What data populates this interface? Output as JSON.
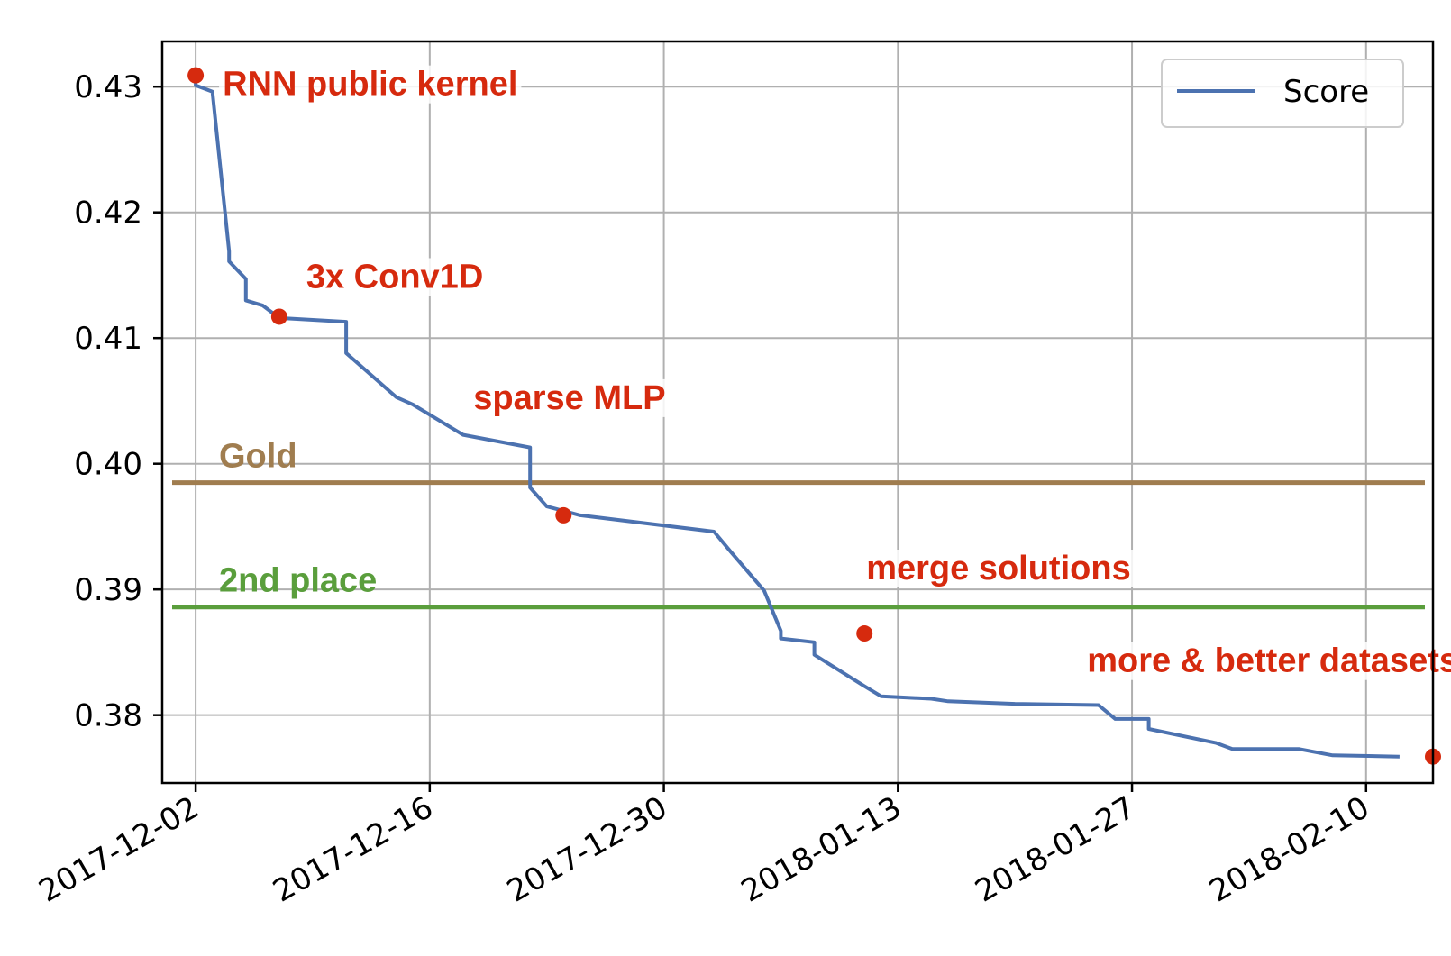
{
  "chart_data": {
    "type": "line",
    "x_type": "date",
    "xlim": [
      "2017-11-30",
      "2018-02-14"
    ],
    "ylim": [
      0.3746,
      0.4336
    ],
    "grid": true,
    "legend_position": "top-right",
    "x_ticks": [
      "2017-12-02",
      "2017-12-16",
      "2017-12-30",
      "2018-01-13",
      "2018-01-27",
      "2018-02-10"
    ],
    "y_ticks": [
      0.38,
      0.39,
      0.4,
      0.41,
      0.42,
      0.43
    ],
    "y_tick_labels": [
      "0.38",
      "0.39",
      "0.40",
      "0.41",
      "0.42",
      "0.43"
    ],
    "series": [
      {
        "name": "Score",
        "color": "#4c72b0",
        "points": [
          [
            "2017-12-02",
            0.4308
          ],
          [
            "2017-12-02",
            0.4301
          ],
          [
            "2017-12-03",
            0.4296
          ],
          [
            "2017-12-04",
            0.4169
          ],
          [
            "2017-12-04",
            0.4161
          ],
          [
            "2017-12-05",
            0.4147
          ],
          [
            "2017-12-05",
            0.413
          ],
          [
            "2017-12-06",
            0.4126
          ],
          [
            "2017-12-07",
            0.4116
          ],
          [
            "2017-12-11",
            0.4113
          ],
          [
            "2017-12-11",
            0.4088
          ],
          [
            "2017-12-14",
            0.4053
          ],
          [
            "2017-12-15",
            0.4047
          ],
          [
            "2017-12-18",
            0.4023
          ],
          [
            "2017-12-22",
            0.4013
          ],
          [
            "2017-12-22",
            0.3981
          ],
          [
            "2017-12-23",
            0.3966
          ],
          [
            "2017-12-25",
            0.3959
          ],
          [
            "2018-01-02",
            0.3946
          ],
          [
            "2018-01-03",
            0.393
          ],
          [
            "2018-01-05",
            0.3899
          ],
          [
            "2018-01-06",
            0.3867
          ],
          [
            "2018-01-06",
            0.3861
          ],
          [
            "2018-01-08",
            0.3858
          ],
          [
            "2018-01-08",
            0.3848
          ],
          [
            "2018-01-11",
            0.3823
          ],
          [
            "2018-01-12",
            0.3815
          ],
          [
            "2018-01-15",
            0.3813
          ],
          [
            "2018-01-16",
            0.3811
          ],
          [
            "2018-01-20",
            0.3809
          ],
          [
            "2018-01-25",
            0.3808
          ],
          [
            "2018-01-26",
            0.3797
          ],
          [
            "2018-01-28",
            0.3797
          ],
          [
            "2018-01-28",
            0.3789
          ],
          [
            "2018-02-01",
            0.3778
          ],
          [
            "2018-02-02",
            0.3773
          ],
          [
            "2018-02-04",
            0.3773
          ],
          [
            "2018-02-06",
            0.3773
          ],
          [
            "2018-02-08",
            0.3768
          ],
          [
            "2018-02-12",
            0.3767
          ]
        ]
      }
    ],
    "reference_lines": [
      {
        "label": "Gold",
        "y": 0.3985,
        "color": "#a07d4f"
      },
      {
        "label": "2nd place",
        "y": 0.3886,
        "color": "#5a9e3c"
      }
    ],
    "markers": [
      {
        "label": "RNN public kernel",
        "date": "2017-12-02",
        "value": 0.4309
      },
      {
        "label": "3x Conv1D",
        "date": "2017-12-07",
        "value": 0.4117
      },
      {
        "label": "sparse MLP",
        "date": "2017-12-24",
        "value": 0.3959
      },
      {
        "label": "merge solutions",
        "date": "2018-01-11",
        "value": 0.3865
      },
      {
        "label": "more & better datasets",
        "date": "2018-02-14",
        "value": 0.3767
      }
    ],
    "marker_color": "#d62a0e",
    "axis_color": "#000000",
    "grid_color": "#b0b0b0"
  }
}
